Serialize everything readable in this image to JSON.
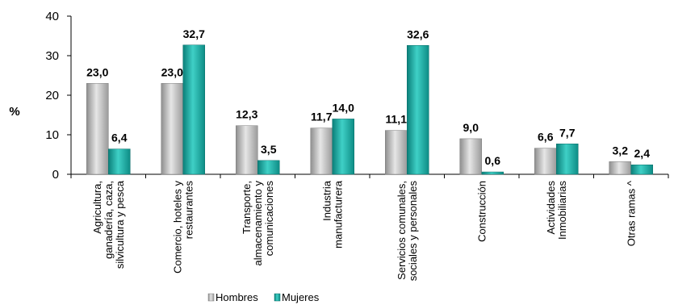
{
  "chart_data": {
    "type": "bar",
    "ylabel": "%",
    "ylim": [
      0,
      40
    ],
    "yticks": [
      "0",
      "10",
      "20",
      "30",
      "40"
    ],
    "categories": [
      [
        "Agricultura,",
        "ganadería, caza,",
        "silvicultura y pesca"
      ],
      [
        "Comercio, hoteles y",
        "restaurantes"
      ],
      [
        "Transporte,",
        "almacenamiento y",
        "comunicaciones"
      ],
      [
        "Industria",
        "manufacturera"
      ],
      [
        "Servicios comunales,",
        "sociales y personales"
      ],
      [
        "Construcción"
      ],
      [
        "Actividades",
        "Inmobiliarias"
      ],
      [
        "Otras ramas ^"
      ]
    ],
    "series": [
      {
        "name": "Hombres",
        "values": [
          23.0,
          23.0,
          12.3,
          11.7,
          11.1,
          9.0,
          6.6,
          3.2
        ],
        "labels": [
          "23,0",
          "23,0",
          "12,3",
          "11,7",
          "11,1",
          "9,0",
          "6,6",
          "3,2"
        ]
      },
      {
        "name": "Mujeres",
        "values": [
          6.4,
          32.7,
          3.5,
          14.0,
          32.6,
          0.6,
          7.7,
          2.4
        ],
        "labels": [
          "6,4",
          "32,7",
          "3,5",
          "14,0",
          "32,6",
          "0,6",
          "7,7",
          "2,4"
        ]
      }
    ],
    "legend_position": "bottom",
    "grid": false,
    "colors": {
      "Hombres": "#b4b4b4",
      "Mujeres": "#1aa8a0"
    }
  }
}
